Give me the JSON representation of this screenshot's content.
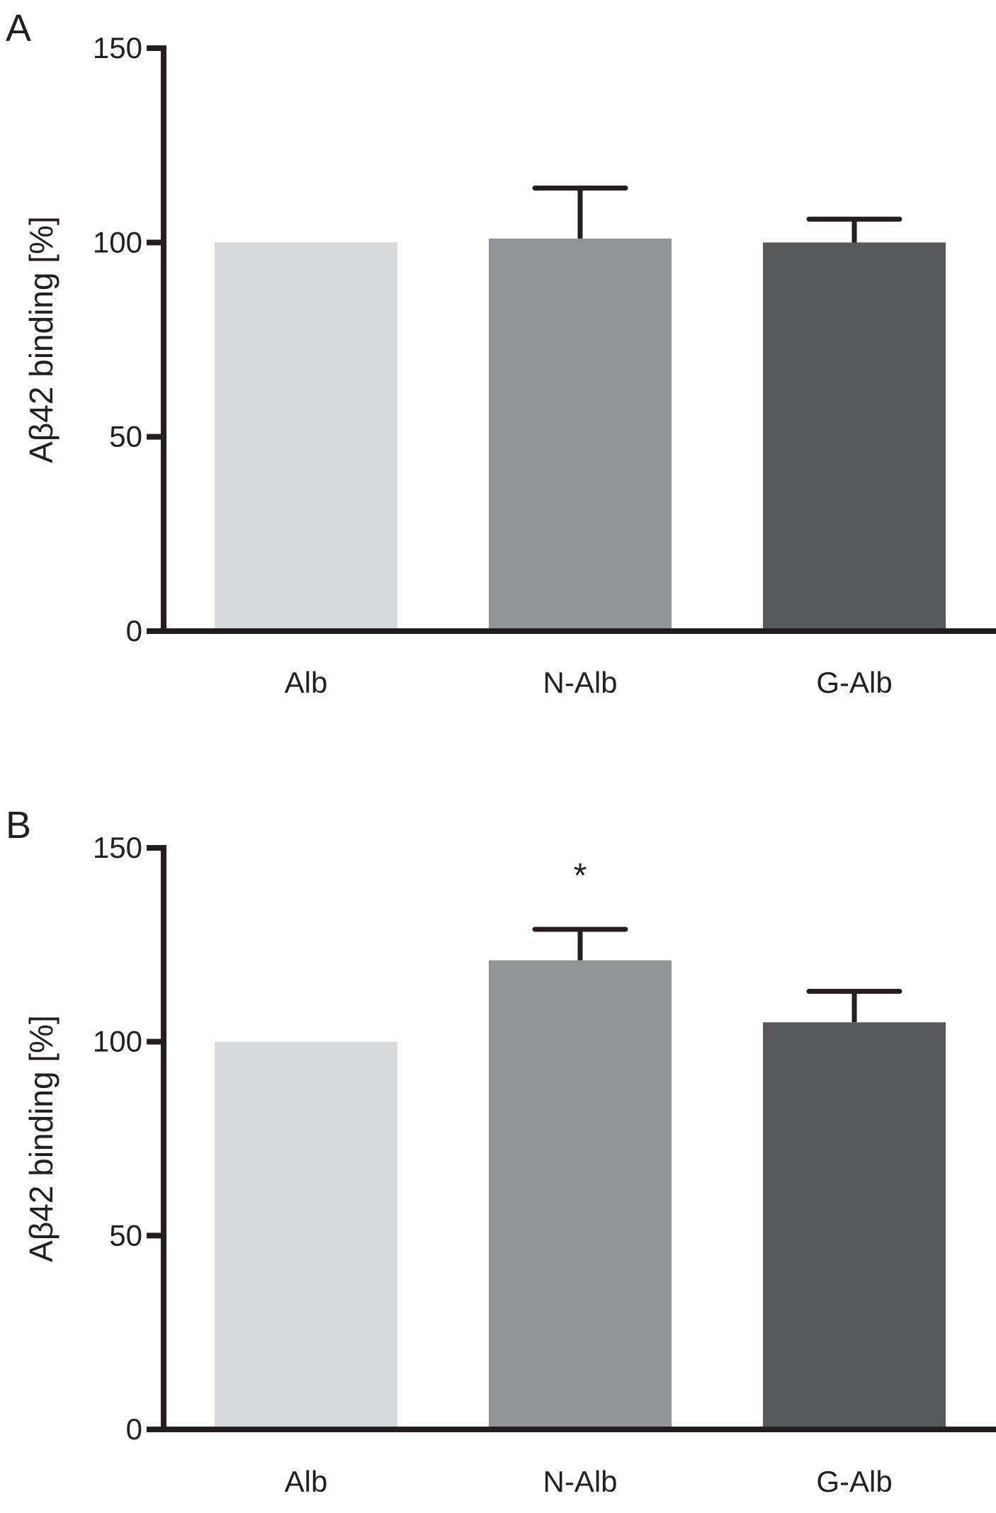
{
  "chart_data": [
    {
      "panel_label": "A",
      "type": "bar",
      "categories": [
        "Alb",
        "N-Alb",
        "G-Alb"
      ],
      "values": [
        100,
        101,
        100
      ],
      "error_upper": [
        null,
        114,
        106
      ],
      "colors": [
        "#d9dadb",
        "#939496",
        "#58595b"
      ],
      "ylabel": "Aβ42 binding [%]",
      "ylim": [
        0,
        150
      ],
      "yticks": [
        "0",
        "50",
        "100",
        "150"
      ],
      "annotations": [],
      "grid": false,
      "legend": "none"
    },
    {
      "panel_label": "B",
      "type": "bar",
      "categories": [
        "Alb",
        "N-Alb",
        "G-Alb"
      ],
      "values": [
        100,
        121,
        105
      ],
      "error_upper": [
        null,
        129,
        113
      ],
      "colors": [
        "#d9dadb",
        "#939496",
        "#58595b"
      ],
      "ylabel": "Aβ42 binding [%]",
      "ylim": [
        0,
        150
      ],
      "yticks": [
        "0",
        "50",
        "100",
        "150"
      ],
      "annotations": [
        {
          "category": "N-Alb",
          "text": "*"
        }
      ],
      "grid": false,
      "legend": "none"
    }
  ]
}
